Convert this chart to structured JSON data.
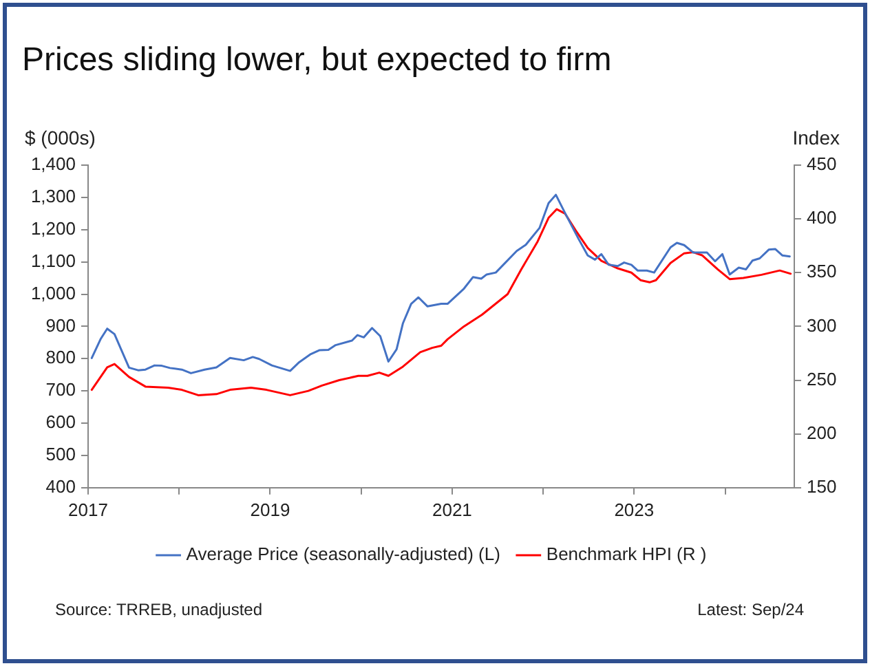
{
  "chart_data": {
    "type": "line",
    "title": "Prices sliding lower, but expected to firm",
    "ylabel": "$ (000s)",
    "y2label": "Index",
    "annotations": [
      "Source: TRREB, unadjusted",
      "Latest: Sep/24"
    ],
    "xlim": [
      2017,
      2024.76
    ],
    "xticks": [
      2017,
      {
        "value": 2018,
        "label": null
      },
      2019,
      {
        "value": 2020,
        "label": null
      },
      2021,
      {
        "value": 2022,
        "label": null
      },
      2023,
      {
        "value": 2024,
        "label": null
      }
    ],
    "ylim": [
      400,
      1400
    ],
    "yticks": [
      {
        "value": 400,
        "label": "400"
      },
      {
        "value": 500,
        "label": "500"
      },
      {
        "value": 600,
        "label": "600"
      },
      {
        "value": 700,
        "label": "700"
      },
      {
        "value": 800,
        "label": "800"
      },
      {
        "value": 900,
        "label": "900"
      },
      {
        "value": 1000,
        "label": "1,000"
      },
      {
        "value": 1100,
        "label": "1,100"
      },
      {
        "value": 1200,
        "label": "1,200"
      },
      {
        "value": 1300,
        "label": "1,300"
      },
      {
        "value": 1400,
        "label": "1,400"
      }
    ],
    "y2lim": [
      150,
      450
    ],
    "y2ticks": [
      150,
      200,
      250,
      300,
      350,
      400,
      450
    ],
    "grid": false,
    "legend": "bottom",
    "marker": "none",
    "line_style": "solid",
    "series": [
      {
        "name": "Average Price (seasonally-adjusted) (L)",
        "color": "#4472c4",
        "x": [
          2017.04,
          2017.14,
          2017.21,
          2017.29,
          2017.45,
          2017.55,
          2017.63,
          2017.73,
          2017.81,
          2017.9,
          2018.03,
          2018.13,
          2018.28,
          2018.41,
          2018.56,
          2018.71,
          2018.81,
          2018.88,
          2019.02,
          2019.22,
          2019.32,
          2019.44,
          2019.54,
          2019.64,
          2019.72,
          2019.9,
          2019.96,
          2020.03,
          2020.12,
          2020.21,
          2020.3,
          2020.39,
          2020.46,
          2020.55,
          2020.63,
          2020.73,
          2020.88,
          2020.95,
          2021.13,
          2021.23,
          2021.32,
          2021.38,
          2021.48,
          2021.71,
          2021.81,
          2021.96,
          2022.06,
          2022.14,
          2022.24,
          2022.39,
          2022.49,
          2022.57,
          2022.64,
          2022.72,
          2022.82,
          2022.89,
          2022.97,
          2023.04,
          2023.14,
          2023.22,
          2023.4,
          2023.47,
          2023.55,
          2023.65,
          2023.8,
          2023.89,
          2023.97,
          2024.05,
          2024.15,
          2024.23,
          2024.3,
          2024.38,
          2024.48,
          2024.55,
          2024.63,
          2024.71
        ],
        "values": [
          802,
          862,
          893,
          876,
          772,
          764,
          766,
          779,
          778,
          771,
          766,
          755,
          766,
          773,
          802,
          795,
          805,
          799,
          779,
          762,
          789,
          813,
          826,
          827,
          842,
          856,
          873,
          866,
          895,
          870,
          791,
          829,
          910,
          970,
          990,
          962,
          970,
          970,
          1017,
          1053,
          1048,
          1061,
          1067,
          1134,
          1153,
          1205,
          1282,
          1308,
          1252,
          1171,
          1120,
          1107,
          1124,
          1091,
          1087,
          1098,
          1091,
          1073,
          1073,
          1067,
          1145,
          1159,
          1152,
          1129,
          1129,
          1102,
          1124,
          1061,
          1082,
          1077,
          1104,
          1111,
          1138,
          1140,
          1120,
          1117
        ]
      },
      {
        "name": "Benchmark HPI (R )",
        "color": "#ff0000",
        "axis": "y2",
        "x": [
          2017.04,
          2017.21,
          2017.29,
          2017.45,
          2017.63,
          2017.88,
          2018.03,
          2018.21,
          2018.41,
          2018.56,
          2018.79,
          2018.96,
          2019.22,
          2019.42,
          2019.57,
          2019.76,
          2019.97,
          2020.07,
          2020.2,
          2020.3,
          2020.45,
          2020.65,
          2020.78,
          2020.88,
          2020.95,
          2021.13,
          2021.33,
          2021.61,
          2021.76,
          2021.94,
          2022.06,
          2022.15,
          2022.24,
          2022.36,
          2022.49,
          2022.64,
          2022.82,
          2022.97,
          2023.07,
          2023.17,
          2023.24,
          2023.4,
          2023.55,
          2023.65,
          2023.75,
          2023.92,
          2024.05,
          2024.2,
          2024.4,
          2024.6,
          2024.72
        ],
        "values": [
          241,
          262,
          265,
          253,
          244,
          243,
          241,
          236,
          237,
          241,
          243,
          241,
          236,
          240,
          245,
          250,
          254,
          254,
          257,
          254,
          262,
          276,
          280,
          282,
          288,
          300,
          311,
          330,
          353,
          379,
          401,
          409,
          405,
          389,
          373,
          361,
          354,
          350,
          343,
          341,
          343,
          359,
          368,
          369,
          366,
          353,
          344,
          345,
          348,
          352,
          349
        ]
      }
    ]
  }
}
